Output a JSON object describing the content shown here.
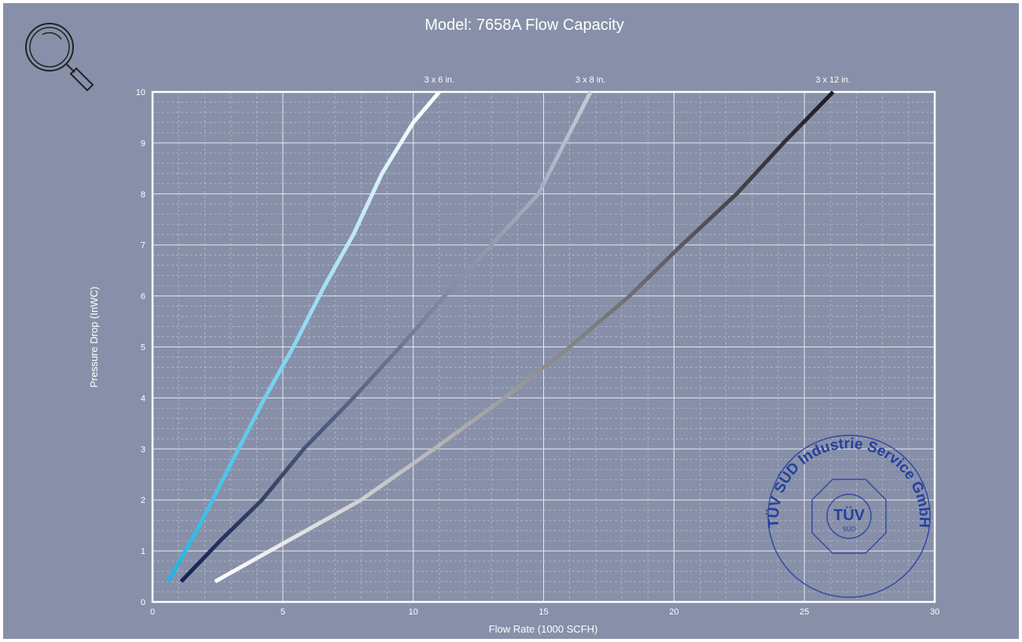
{
  "chart_data": {
    "type": "line",
    "title": "Model: 7658A Flow Capacity",
    "xlabel": "Flow Rate (1000 SCFH)",
    "ylabel": "Pressure Drop (InWC)",
    "xlim": [
      0,
      30
    ],
    "ylim": [
      0,
      10
    ],
    "xticks": [
      0,
      5,
      10,
      15,
      20,
      25,
      30
    ],
    "yticks": [
      0,
      1,
      2,
      3,
      4,
      5,
      6,
      7,
      8,
      9,
      10
    ],
    "grid": true,
    "legend": "inline labels at top of each curve",
    "series": [
      {
        "name": "3 x 6 in.",
        "gradient": [
          "#1fb4e6",
          "#ffffff"
        ],
        "points": [
          [
            0.6,
            0.4
          ],
          [
            1.8,
            1.5
          ],
          [
            3.0,
            2.7
          ],
          [
            4.2,
            3.9
          ],
          [
            5.4,
            5.0
          ],
          [
            6.6,
            6.2
          ],
          [
            7.7,
            7.2
          ],
          [
            8.8,
            8.4
          ],
          [
            10.0,
            9.4
          ],
          [
            11.0,
            10.0
          ]
        ]
      },
      {
        "name": "3 x 8 in.",
        "gradient": [
          "#12244f",
          "#c8cad6"
        ],
        "points": [
          [
            1.1,
            0.4
          ],
          [
            2.6,
            1.2
          ],
          [
            4.2,
            2.0
          ],
          [
            5.8,
            3.0
          ],
          [
            7.7,
            4.0
          ],
          [
            9.5,
            5.0
          ],
          [
            11.2,
            6.0
          ],
          [
            13.0,
            7.0
          ],
          [
            14.8,
            8.0
          ],
          [
            15.8,
            9.0
          ],
          [
            16.8,
            10.0
          ]
        ]
      },
      {
        "name": "3 x 12 in.",
        "gradient": [
          "#ffffff",
          "#1c1c22"
        ],
        "points": [
          [
            2.4,
            0.4
          ],
          [
            5.2,
            1.2
          ],
          [
            8.0,
            2.0
          ],
          [
            10.8,
            3.0
          ],
          [
            13.5,
            4.0
          ],
          [
            16.0,
            5.0
          ],
          [
            18.3,
            6.0
          ],
          [
            20.3,
            7.0
          ],
          [
            22.4,
            8.0
          ],
          [
            24.2,
            9.0
          ],
          [
            26.1,
            10.0
          ]
        ]
      }
    ]
  },
  "stamp": {
    "ring_text": "TÜV SÜD Industrie Service GmbH",
    "logo_text": "TÜV",
    "sub_text": "SÜD",
    "color": "#2440a0"
  },
  "icons": {
    "zoom": "magnifier-icon"
  }
}
